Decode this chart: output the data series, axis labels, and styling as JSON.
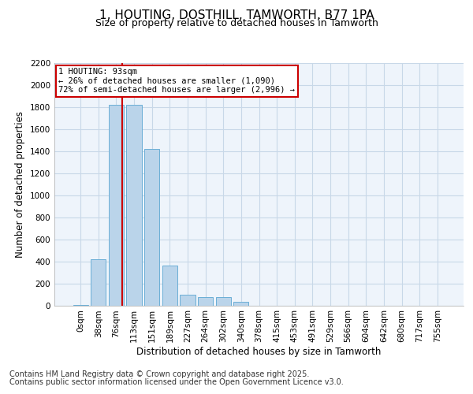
{
  "title": "1, HOUTING, DOSTHILL, TAMWORTH, B77 1PA",
  "subtitle": "Size of property relative to detached houses in Tamworth",
  "xlabel": "Distribution of detached houses by size in Tamworth",
  "ylabel": "Number of detached properties",
  "categories": [
    "0sqm",
    "38sqm",
    "76sqm",
    "113sqm",
    "151sqm",
    "189sqm",
    "227sqm",
    "264sqm",
    "302sqm",
    "340sqm",
    "378sqm",
    "415sqm",
    "453sqm",
    "491sqm",
    "529sqm",
    "566sqm",
    "604sqm",
    "642sqm",
    "680sqm",
    "717sqm",
    "755sqm"
  ],
  "values": [
    5,
    420,
    1820,
    1820,
    1420,
    360,
    100,
    75,
    75,
    30,
    0,
    0,
    0,
    0,
    0,
    0,
    0,
    0,
    0,
    0,
    0
  ],
  "bar_color": "#bad4ea",
  "bar_edge_color": "#6aaed6",
  "vline_x": 2.35,
  "vline_color": "#cc0000",
  "annotation_text": "1 HOUTING: 93sqm\n← 26% of detached houses are smaller (1,090)\n72% of semi-detached houses are larger (2,996) →",
  "annotation_box_color": "#cc0000",
  "ylim": [
    0,
    2200
  ],
  "yticks": [
    0,
    200,
    400,
    600,
    800,
    1000,
    1200,
    1400,
    1600,
    1800,
    2000,
    2200
  ],
  "grid_color": "#c8d8e8",
  "background_color": "#ffffff",
  "plot_bg_color": "#eef4fb",
  "footer_line1": "Contains HM Land Registry data © Crown copyright and database right 2025.",
  "footer_line2": "Contains public sector information licensed under the Open Government Licence v3.0.",
  "title_fontsize": 11,
  "subtitle_fontsize": 9,
  "axis_label_fontsize": 8.5,
  "tick_fontsize": 7.5,
  "footer_fontsize": 7
}
